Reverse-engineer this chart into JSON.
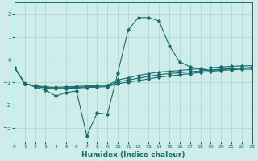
{
  "xlabel": "Humidex (Indice chaleur)",
  "xlim": [
    0,
    23
  ],
  "ylim": [
    -3.6,
    2.5
  ],
  "yticks": [
    -3,
    -2,
    -1,
    0,
    1,
    2
  ],
  "xticks": [
    0,
    1,
    2,
    3,
    4,
    5,
    6,
    7,
    8,
    9,
    10,
    11,
    12,
    13,
    14,
    15,
    16,
    17,
    18,
    19,
    20,
    21,
    22,
    23
  ],
  "bg_color": "#ceecea",
  "grid_color": "#aad4d0",
  "line_color": "#1a6b6b",
  "line1_y": [
    -0.35,
    -1.05,
    -1.15,
    -1.2,
    -1.22,
    -1.2,
    -1.18,
    -1.16,
    -1.14,
    -1.12,
    -0.9,
    -0.8,
    -0.7,
    -0.62,
    -0.55,
    -0.52,
    -0.48,
    -0.44,
    -0.4,
    -0.36,
    -0.33,
    -0.3,
    -0.28,
    -0.27
  ],
  "line2_y": [
    -0.35,
    -1.05,
    -1.17,
    -1.22,
    -1.25,
    -1.24,
    -1.22,
    -1.2,
    -1.18,
    -1.16,
    -0.98,
    -0.9,
    -0.82,
    -0.74,
    -0.66,
    -0.62,
    -0.58,
    -0.54,
    -0.5,
    -0.46,
    -0.43,
    -0.4,
    -0.38,
    -0.37
  ],
  "line3_y": [
    -0.35,
    -1.05,
    -1.19,
    -1.25,
    -1.28,
    -1.27,
    -1.25,
    -1.23,
    -1.21,
    -1.19,
    -1.06,
    -0.99,
    -0.92,
    -0.85,
    -0.77,
    -0.72,
    -0.67,
    -0.62,
    -0.57,
    -0.52,
    -0.48,
    -0.45,
    -0.43,
    -0.42
  ],
  "peak_y": [
    -0.35,
    -1.05,
    -1.2,
    -1.35,
    -1.6,
    -1.45,
    -1.38,
    -3.35,
    -2.35,
    -2.4,
    -0.6,
    1.3,
    1.85,
    1.85,
    1.7,
    0.6,
    -0.1,
    -0.32,
    -0.42,
    -0.47,
    -0.44,
    -0.4,
    -0.37,
    -0.35
  ]
}
